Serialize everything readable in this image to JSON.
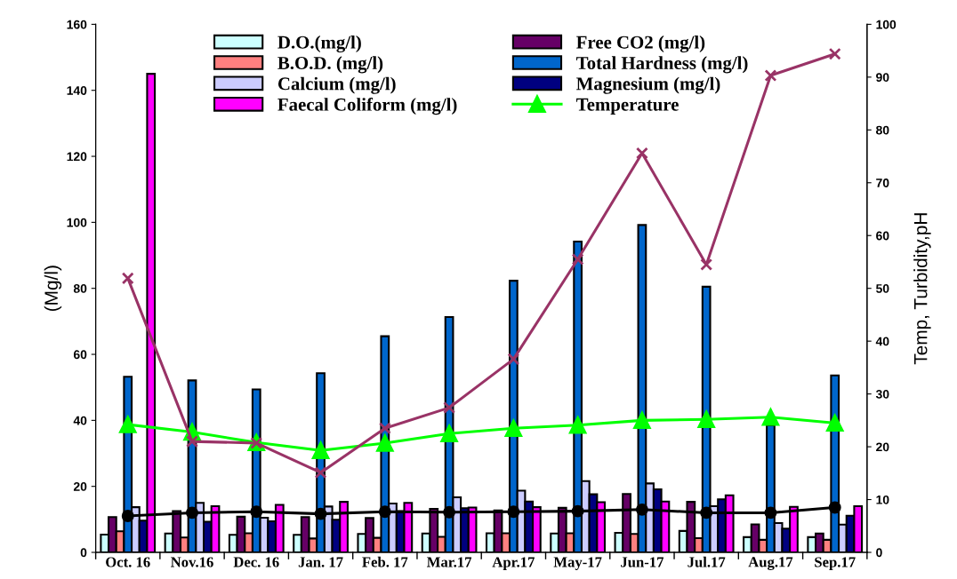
{
  "chart_data": {
    "type": "bar",
    "categories": [
      "Oct. 16",
      "Nov.16",
      "Dec. 16",
      "Jan. 17",
      "Feb. 17",
      "Mar.17",
      "Apr.17",
      "May-17",
      "Jun-17",
      "Jul.17",
      "Aug.17",
      "Sep.17"
    ],
    "ylabel": "(Mg/l)",
    "y2label": "Temp, Turbidity,pH",
    "ylim": [
      0,
      160
    ],
    "yticks": [
      0,
      20,
      40,
      60,
      80,
      100,
      120,
      140,
      160
    ],
    "y2lim": [
      0,
      100
    ],
    "y2ticks": [
      0,
      10,
      20,
      30,
      40,
      50,
      60,
      70,
      80,
      90,
      100
    ],
    "grid": false,
    "legend": "top",
    "series": [
      {
        "name": "D.O.(mg/l)",
        "color": "#ccffff",
        "values": [
          5.4,
          5.7,
          5.3,
          5.3,
          5.6,
          5.7,
          5.8,
          5.7,
          5.9,
          6.5,
          4.6,
          4.6
        ]
      },
      {
        "name": "Free CO2 (mg/l)",
        "color": "#660066",
        "values": [
          10.7,
          12.5,
          10.8,
          10.7,
          10.4,
          13.2,
          12.7,
          13.5,
          17.7,
          15.3,
          8.5,
          5.7
        ]
      },
      {
        "name": "B.O.D. (mg/l)",
        "color": "#ff8080",
        "values": [
          6.4,
          4.5,
          5.8,
          4.2,
          4.4,
          4.7,
          5.8,
          5.8,
          5.6,
          4.3,
          3.8,
          3.8
        ]
      },
      {
        "name": "Total Hardness (mg/l)",
        "color": "#0066cc",
        "values": [
          53.2,
          52.1,
          49.4,
          54.3,
          65.5,
          71.3,
          82.3,
          94.2,
          99.2,
          80.5,
          38.5,
          53.6
        ]
      },
      {
        "name": "Calcium (mg/l)",
        "color": "#ccccff",
        "values": [
          13.7,
          15.0,
          10.5,
          13.9,
          14.8,
          16.7,
          18.7,
          21.6,
          20.9,
          14.0,
          8.9,
          8.4
        ]
      },
      {
        "name": "Magnesium (mg/l)",
        "color": "#000080",
        "values": [
          9.6,
          9.3,
          9.4,
          9.9,
          12.5,
          13.4,
          15.4,
          17.6,
          19.1,
          16.1,
          7.2,
          11.1
        ]
      },
      {
        "name": "Faecal Coliform (mg/l)",
        "color": "#ff00ff",
        "values": [
          145,
          14.0,
          14.4,
          15.3,
          15.0,
          13.6,
          13.7,
          15.2,
          15.4,
          17.3,
          13.8,
          14.0
        ]
      },
      {
        "name": "Temperature",
        "type": "line",
        "axis": "y2",
        "marker": "triangle",
        "color": "#00ff00",
        "values": [
          24.2,
          22.8,
          20.8,
          19.3,
          20.7,
          22.5,
          23.5,
          24.1,
          25.0,
          25.2,
          25.6,
          24.5
        ]
      },
      {
        "type": "line",
        "axis": "y2",
        "marker": "cross",
        "color": "#993366",
        "values": [
          51.9,
          21.0,
          20.7,
          15.1,
          23.5,
          27.4,
          36.6,
          55.5,
          75.6,
          54.5,
          90.3,
          94.4
        ]
      },
      {
        "type": "line",
        "axis": "y2",
        "marker": "circle",
        "color": "#000000",
        "values": [
          6.9,
          7.5,
          7.7,
          7.3,
          7.7,
          7.6,
          7.7,
          7.8,
          8.1,
          7.5,
          7.5,
          8.5
        ]
      }
    ]
  }
}
